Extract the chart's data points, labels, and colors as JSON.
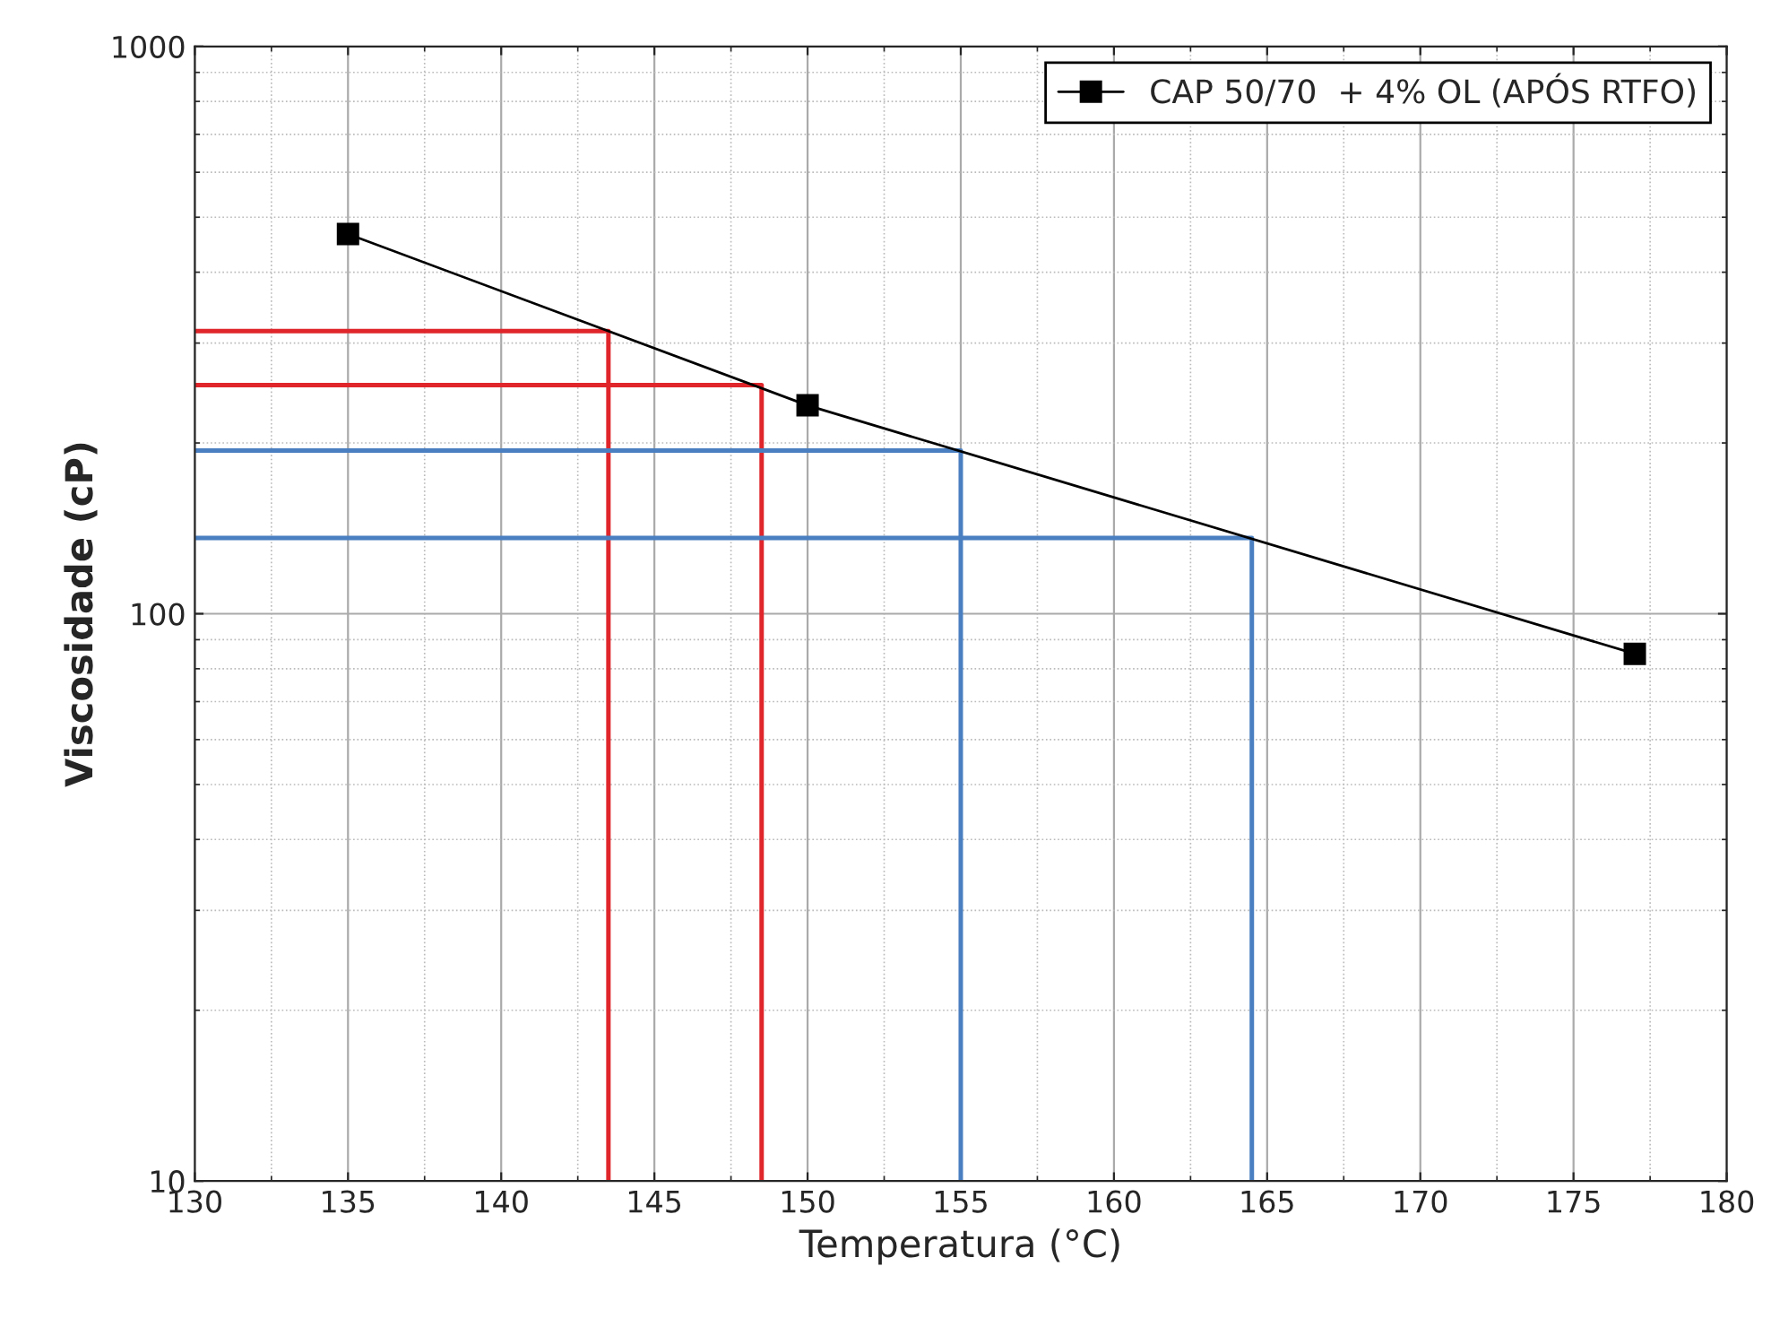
{
  "chart_data": {
    "type": "line",
    "xlabel": "Temperatura (°C)",
    "ylabel": "Viscosidade (cP)",
    "log": "y",
    "xlim": [
      130,
      180
    ],
    "xticks": [
      130,
      135,
      140,
      145,
      150,
      155,
      160,
      165,
      170,
      175,
      180
    ],
    "ylim": [
      10,
      1000
    ],
    "yticks": [
      10,
      100,
      1000
    ],
    "grid": true,
    "legend": "top right",
    "series": [
      {
        "name": "CAP 50/70  + 4% OL (APÓS RTFO)",
        "color": "#000000",
        "marker": "square",
        "x": [
          135,
          150,
          177
        ],
        "values": [
          467,
          233,
          85
        ]
      },
      {
        "color": "#e0262b",
        "marker": "none",
        "x": [
          130,
          143.5,
          143.5
        ],
        "values": [
          315,
          315,
          10
        ]
      },
      {
        "color": "#e0262b",
        "marker": "none",
        "x": [
          130,
          148.5,
          148.5
        ],
        "values": [
          253,
          253,
          10
        ]
      },
      {
        "color": "#4a7fc1",
        "marker": "none",
        "x": [
          130,
          155,
          155
        ],
        "values": [
          194,
          194,
          10
        ]
      },
      {
        "color": "#4a7fc1",
        "marker": "none",
        "x": [
          130,
          164.5,
          164.5
        ],
        "values": [
          136,
          136,
          10
        ]
      }
    ]
  }
}
